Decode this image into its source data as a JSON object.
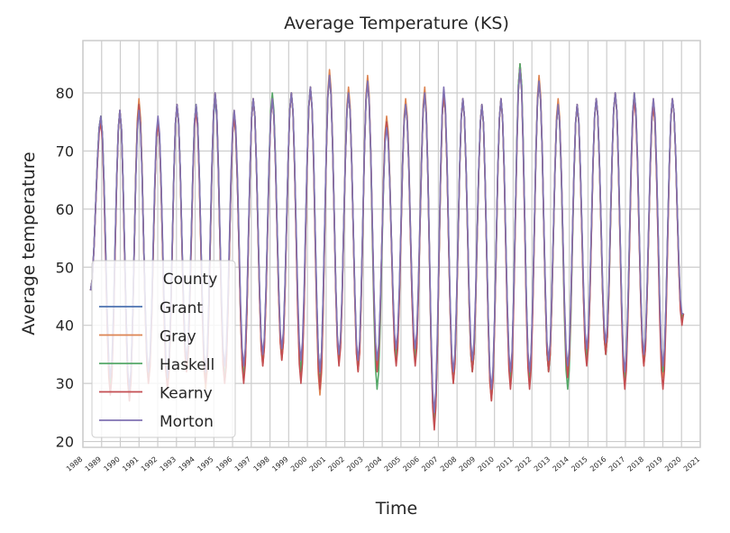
{
  "chart_data": {
    "type": "line",
    "title": "Average Temperature (KS)",
    "xlabel": "Time",
    "ylabel": "Average temperature",
    "xlim": [
      1988.6,
      2021.0
    ],
    "ylim": [
      19,
      89
    ],
    "yticks": [
      20,
      30,
      40,
      50,
      60,
      70,
      80
    ],
    "x_tick_labels": [
      "1988",
      "1989",
      "1990",
      "1991",
      "1992",
      "1993",
      "1994",
      "1995",
      "1996",
      "1997",
      "1998",
      "1999",
      "2000",
      "2001",
      "2002",
      "2003",
      "2004",
      "2005",
      "2006",
      "2007",
      "2008",
      "2009",
      "2010",
      "2011",
      "2012",
      "2013",
      "2014",
      "2015",
      "2016",
      "2017",
      "2018",
      "2019",
      "2020",
      "2021"
    ],
    "grid": true,
    "legend": {
      "title": "County",
      "position": "lower-left"
    },
    "years": [
      1989,
      1990,
      1991,
      1992,
      1993,
      1994,
      1995,
      1996,
      1997,
      1998,
      1999,
      2000,
      2001,
      2002,
      2003,
      2004,
      2005,
      2006,
      2007,
      2008,
      2009,
      2010,
      2011,
      2012,
      2013,
      2014,
      2015,
      2016,
      2017,
      2018,
      2019,
      2020
    ],
    "series": [
      {
        "name": "Grant",
        "color": "#4c72b0",
        "summer_peak": [
          76,
          77,
          78,
          75,
          78,
          78,
          79,
          76,
          79,
          79,
          80,
          81,
          83,
          80,
          82,
          75,
          78,
          80,
          80,
          79,
          78,
          79,
          85,
          82,
          78,
          78,
          79,
          80,
          79,
          78,
          79,
          null
        ],
        "winter_low": [
          null,
          30,
          28,
          31,
          30,
          33,
          31,
          31,
          31,
          34,
          35,
          32,
          32,
          34,
          33,
          33,
          35,
          34,
          23,
          31,
          33,
          28,
          31,
          31,
          33,
          32,
          35,
          36,
          31,
          34,
          32,
          41
        ]
      },
      {
        "name": "Gray",
        "color": "#dd8452",
        "summer_peak": [
          76,
          77,
          79,
          75,
          78,
          78,
          80,
          77,
          79,
          79,
          80,
          81,
          84,
          81,
          83,
          76,
          79,
          81,
          80,
          79,
          78,
          79,
          85,
          83,
          79,
          78,
          79,
          80,
          80,
          79,
          79,
          null
        ],
        "winter_low": [
          null,
          29,
          27,
          30,
          29,
          32,
          29,
          30,
          31,
          33,
          34,
          31,
          28,
          34,
          32,
          32,
          34,
          35,
          23,
          30,
          32,
          27,
          30,
          30,
          32,
          31,
          34,
          35,
          30,
          33,
          31,
          41
        ]
      },
      {
        "name": "Haskell",
        "color": "#55a868",
        "summer_peak": [
          76,
          77,
          78,
          75,
          78,
          78,
          80,
          76,
          79,
          80,
          80,
          81,
          83,
          80,
          82,
          75,
          78,
          80,
          80,
          79,
          78,
          79,
          85,
          82,
          78,
          78,
          79,
          80,
          80,
          78,
          79,
          null
        ],
        "winter_low": [
          null,
          30,
          28,
          31,
          30,
          33,
          31,
          31,
          31,
          34,
          35,
          32,
          30,
          34,
          33,
          29,
          34,
          34,
          23,
          31,
          32,
          28,
          31,
          31,
          32,
          29,
          34,
          35,
          31,
          34,
          32,
          41
        ]
      },
      {
        "name": "Kearny",
        "color": "#c44e52",
        "summer_peak": [
          75,
          77,
          78,
          75,
          78,
          77,
          80,
          76,
          79,
          79,
          80,
          81,
          83,
          80,
          82,
          75,
          78,
          80,
          80,
          79,
          78,
          79,
          84,
          82,
          78,
          78,
          79,
          80,
          79,
          78,
          79,
          null
        ],
        "winter_low": [
          null,
          28,
          27,
          30,
          29,
          32,
          30,
          30,
          30,
          33,
          34,
          30,
          29,
          33,
          32,
          32,
          33,
          33,
          22,
          30,
          32,
          27,
          29,
          29,
          32,
          31,
          33,
          35,
          29,
          33,
          29,
          40
        ]
      },
      {
        "name": "Morton",
        "color": "#8172b3",
        "summer_peak": [
          76,
          77,
          77,
          76,
          78,
          78,
          80,
          77,
          79,
          79,
          80,
          81,
          83,
          80,
          82,
          74,
          78,
          80,
          81,
          79,
          78,
          79,
          84,
          82,
          78,
          78,
          79,
          80,
          80,
          79,
          79,
          null
        ],
        "winter_low": [
          null,
          31,
          29,
          32,
          31,
          34,
          32,
          33,
          33,
          35,
          36,
          34,
          32,
          35,
          34,
          34,
          36,
          36,
          25,
          32,
          34,
          29,
          32,
          32,
          34,
          33,
          36,
          37,
          32,
          35,
          33,
          42
        ]
      }
    ]
  }
}
